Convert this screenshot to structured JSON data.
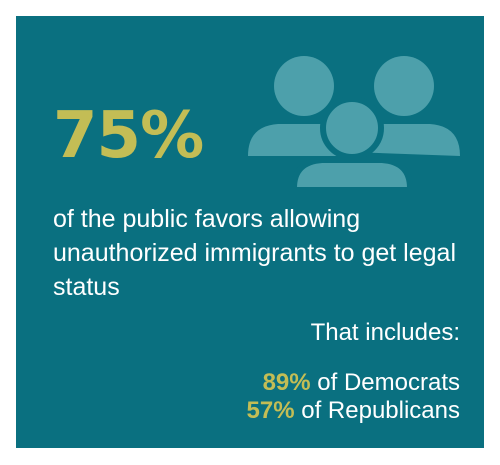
{
  "stat": {
    "value": "75%",
    "color": "#c3bd55"
  },
  "icon": "people-group-icon",
  "headline": "of the public favors allowing unauthorized immigrants to get legal status",
  "includes_label": "That includes:",
  "breakdown": [
    {
      "pct": "89%",
      "text": " of Democrats"
    },
    {
      "pct": "57%",
      "text": " of Republicans"
    }
  ],
  "colors": {
    "background": "#0a7080",
    "accent": "#c3bd55",
    "icon": "#4da0ab",
    "text": "#ffffff"
  }
}
